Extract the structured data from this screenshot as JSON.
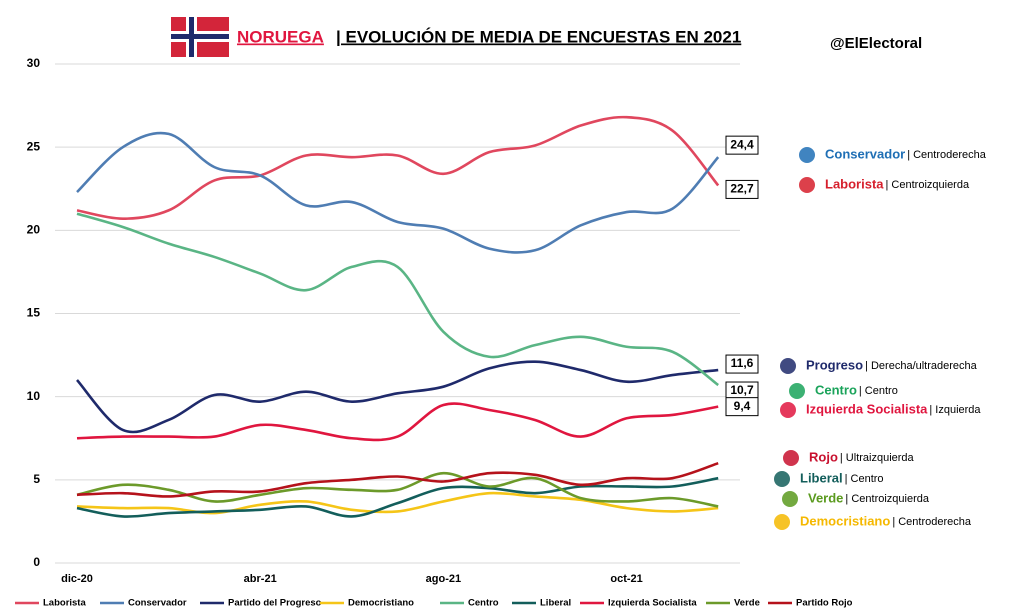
{
  "chart_data": {
    "type": "line",
    "title_highlight": "NORUEGA",
    "title": "| EVOLUCIÓN DE MEDIA DE ENCUESTAS EN 2021",
    "handle": "@ElElectoral",
    "categories": [
      "dic-20",
      null,
      null,
      null,
      "abr-21",
      null,
      null,
      null,
      "ago-21",
      null,
      null,
      null,
      "oct-21",
      null,
      null
    ],
    "ylim": [
      0,
      30
    ],
    "yticks": [
      0,
      5,
      10,
      15,
      20,
      25,
      30
    ],
    "grid": true,
    "series": [
      {
        "name": "Laborista",
        "color": "#e0475e",
        "values": [
          21.2,
          20.7,
          21.2,
          23.0,
          23.3,
          24.5,
          24.4,
          24.5,
          23.4,
          24.7,
          25.1,
          26.3,
          26.8,
          26.0,
          22.7
        ],
        "value_labels": [
          null,
          null,
          null,
          null,
          null,
          null,
          null,
          null,
          null,
          null,
          null,
          null,
          null,
          null,
          "22,7"
        ]
      },
      {
        "name": "Conservador",
        "color": "#4f7db3",
        "values": [
          22.3,
          25.0,
          25.8,
          23.8,
          23.3,
          21.5,
          21.7,
          20.5,
          20.1,
          18.9,
          18.8,
          20.3,
          21.1,
          21.3,
          24.4
        ],
        "value_labels": [
          null,
          null,
          null,
          null,
          null,
          null,
          null,
          null,
          null,
          null,
          null,
          null,
          null,
          null,
          "24,4"
        ]
      },
      {
        "name": "Partido del Progreso",
        "color": "#1f2a6b",
        "values": [
          11.0,
          8.0,
          8.6,
          10.1,
          9.7,
          10.3,
          9.7,
          10.2,
          10.6,
          11.7,
          12.1,
          11.6,
          10.9,
          11.3,
          11.6
        ],
        "value_labels": [
          null,
          null,
          null,
          null,
          null,
          null,
          null,
          null,
          null,
          null,
          null,
          null,
          null,
          null,
          "11,6"
        ]
      },
      {
        "name": "Democristiano",
        "color": "#f5c518",
        "values": [
          3.4,
          3.3,
          3.3,
          3.0,
          3.5,
          3.7,
          3.2,
          3.1,
          3.7,
          4.2,
          4.0,
          3.8,
          3.3,
          3.1,
          3.3
        ]
      },
      {
        "name": "Centro",
        "color": "#5ab585",
        "values": [
          21.0,
          20.2,
          19.2,
          18.4,
          17.4,
          16.4,
          17.8,
          17.8,
          13.9,
          12.4,
          13.1,
          13.6,
          13.0,
          12.7,
          10.7
        ],
        "value_labels": [
          null,
          null,
          null,
          null,
          null,
          null,
          null,
          null,
          null,
          null,
          null,
          null,
          null,
          null,
          "10,7"
        ]
      },
      {
        "name": "Liberal",
        "color": "#135e5b",
        "values": [
          3.3,
          2.8,
          3.0,
          3.1,
          3.2,
          3.4,
          2.8,
          3.6,
          4.5,
          4.5,
          4.2,
          4.6,
          4.6,
          4.6,
          5.1
        ]
      },
      {
        "name": "Izquierda Socialista",
        "color": "#e0163f",
        "values": [
          7.5,
          7.6,
          7.6,
          7.6,
          8.3,
          8.0,
          7.5,
          7.6,
          9.5,
          9.2,
          8.6,
          7.6,
          8.7,
          8.9,
          9.4
        ],
        "value_labels": [
          null,
          null,
          null,
          null,
          null,
          null,
          null,
          null,
          null,
          null,
          null,
          null,
          null,
          null,
          "9,4"
        ]
      },
      {
        "name": "Verde",
        "color": "#6c9a2a",
        "values": [
          4.1,
          4.7,
          4.4,
          3.7,
          4.1,
          4.5,
          4.4,
          4.4,
          5.4,
          4.6,
          5.1,
          3.9,
          3.7,
          3.9,
          3.4
        ]
      },
      {
        "name": "Partido Rojo",
        "color": "#b5121b",
        "values": [
          4.1,
          4.2,
          4.0,
          4.3,
          4.3,
          4.8,
          5.0,
          5.2,
          4.9,
          5.4,
          5.3,
          4.7,
          5.1,
          5.1,
          6.0
        ]
      }
    ],
    "parties": [
      {
        "name": "Conservador",
        "color": "#1f6fb5",
        "ideology": "| Centroderecha"
      },
      {
        "name": "Laborista",
        "color": "#d61f2c",
        "ideology": "| Centroizquierda"
      },
      {
        "name": "Progreso",
        "color": "#1f2a6b",
        "ideology": "| Derecha/ultraderecha"
      },
      {
        "name": "Centro",
        "color": "#1aa35a",
        "ideology": "| Centro"
      },
      {
        "name": "Izquierda Socialista",
        "color": "#e0163f",
        "ideology": "| Izquierda"
      },
      {
        "name": "Rojo",
        "color": "#c8102e",
        "ideology": "| Ultraizquierda"
      },
      {
        "name": "Liberal",
        "color": "#135e5b",
        "ideology": "| Centro"
      },
      {
        "name": "Verde",
        "color": "#5a9a1e",
        "ideology": "| Centroizquierda"
      },
      {
        "name": "Democristiano",
        "color": "#f5b800",
        "ideology": "| Centroderecha"
      }
    ]
  }
}
